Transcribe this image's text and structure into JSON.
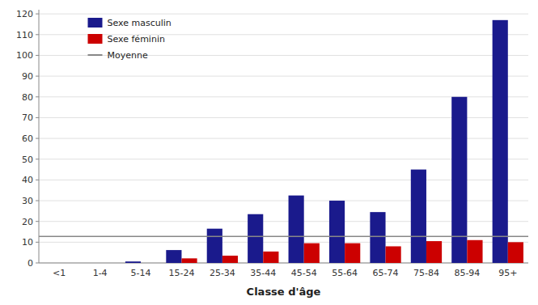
{
  "chart_data": {
    "type": "bar",
    "x_label": "Classe d'âge",
    "categories": [
      "<1",
      "1-4",
      "5-14",
      "15-24",
      "25-34",
      "35-44",
      "45-54",
      "55-64",
      "65-74",
      "75-84",
      "85-94",
      "95+"
    ],
    "series": [
      {
        "name": "Sexe masculin",
        "color": "#1a1a8c",
        "values": [
          0,
          0,
          0.7,
          6.2,
          16.5,
          23.5,
          32.5,
          30.0,
          24.5,
          45.0,
          80.0,
          117.0
        ]
      },
      {
        "name": "Sexe féminin",
        "color": "#cc0000",
        "values": [
          0,
          0,
          0,
          2.2,
          3.5,
          5.5,
          9.5,
          9.5,
          8.0,
          10.5,
          11.0,
          10.0
        ]
      }
    ],
    "mean_line": {
      "name": "Moyenne",
      "value": 12.8,
      "color": "#888888"
    },
    "ylim": [
      0,
      122
    ],
    "yticks": [
      0,
      10,
      20,
      30,
      40,
      50,
      60,
      70,
      80,
      90,
      100,
      110,
      120
    ],
    "grid": true,
    "legend": "upper left"
  }
}
